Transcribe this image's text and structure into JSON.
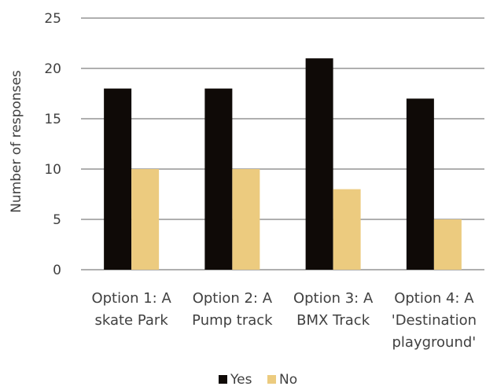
{
  "chart_data": {
    "type": "bar",
    "title": "",
    "xlabel": "",
    "ylabel": "Number of responses",
    "ylim": [
      0,
      25
    ],
    "yticks": [
      0,
      5,
      10,
      15,
      20,
      25
    ],
    "grid": true,
    "legend_position": "bottom",
    "categories": [
      [
        "Option 1: A",
        "skate Park"
      ],
      [
        "Option 2: A",
        "Pump track"
      ],
      [
        "Option 3: A",
        "BMX Track"
      ],
      [
        "Option 4: A",
        "'Destination",
        "playground'"
      ]
    ],
    "series": [
      {
        "name": "Yes",
        "color": "#0f0a07",
        "values": [
          18,
          18,
          21,
          17
        ]
      },
      {
        "name": "No",
        "color": "#eccb7f",
        "values": [
          10,
          10,
          8,
          5
        ]
      }
    ]
  }
}
